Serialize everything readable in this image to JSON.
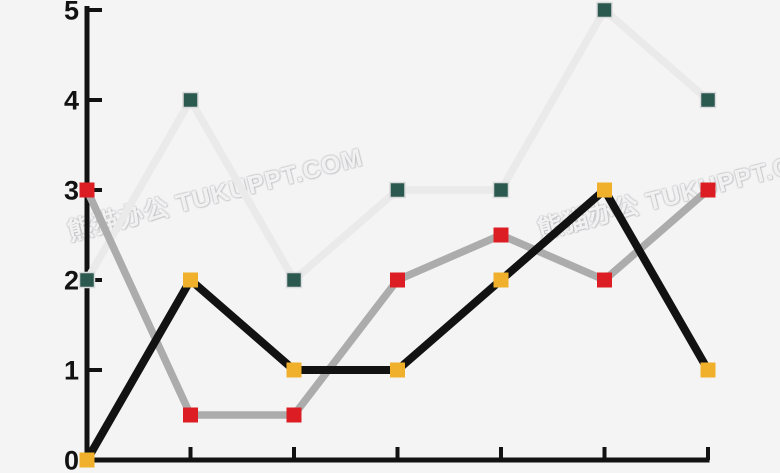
{
  "watermark": {
    "text": "熊猫办公 TUKUPPT.COM"
  },
  "chart_data": {
    "type": "line",
    "title": "",
    "xlabel": "",
    "ylabel": "",
    "background": "#f4f4f5",
    "axis_color": "#121212",
    "grid": false,
    "legend": "none",
    "x": [
      0,
      1,
      2,
      3,
      4,
      5,
      6
    ],
    "x_axis": {
      "tick_count": 6,
      "tick_labels": []
    },
    "y_axis": {
      "ticks": [
        0,
        1,
        2,
        3,
        4,
        5
      ],
      "range": [
        0,
        5
      ]
    },
    "series": [
      {
        "name": "light-gray-teal-series",
        "values": [
          2,
          4,
          2,
          3,
          3,
          5,
          4
        ],
        "line_color": "#eaeaeb",
        "line_width": 7.5,
        "marker": "square",
        "marker_color": "#2c594f",
        "marker_stroke": "#d9dadb"
      },
      {
        "name": "gray-red-series",
        "values": [
          3,
          0.5,
          0.5,
          2,
          2.5,
          2,
          3
        ],
        "line_color": "#acacac",
        "line_width": 7.5,
        "marker": "square",
        "marker_color": "#dc1e24",
        "marker_stroke": "none"
      },
      {
        "name": "black-amber-series",
        "values": [
          0,
          2,
          1,
          1,
          2,
          3,
          1
        ],
        "line_color": "#121212",
        "line_width": 8,
        "marker": "square",
        "marker_color": "#f0b02b",
        "marker_stroke": "none"
      }
    ]
  }
}
